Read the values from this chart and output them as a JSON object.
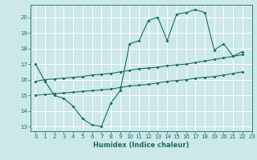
{
  "xlabel": "Humidex (Indice chaleur)",
  "bg_color": "#cce8e8",
  "grid_color": "#ffffff",
  "line_color": "#1a6b6b",
  "xlim": [
    -0.5,
    23
  ],
  "ylim": [
    12.7,
    20.8
  ],
  "xticks": [
    0,
    1,
    2,
    3,
    4,
    5,
    6,
    7,
    8,
    9,
    10,
    11,
    12,
    13,
    14,
    15,
    16,
    17,
    18,
    19,
    20,
    21,
    22,
    23
  ],
  "yticks": [
    13,
    14,
    15,
    16,
    17,
    18,
    19,
    20
  ],
  "line1_x": [
    0,
    1,
    2,
    3,
    4,
    5,
    6,
    7,
    8,
    9,
    10,
    11,
    12,
    13,
    14,
    15,
    16,
    17,
    18,
    19,
    20,
    21,
    22
  ],
  "line1_y": [
    17.0,
    15.9,
    15.0,
    14.8,
    14.3,
    13.5,
    13.1,
    13.0,
    14.5,
    15.3,
    18.3,
    18.5,
    19.8,
    20.0,
    18.5,
    20.2,
    20.3,
    20.5,
    20.3,
    17.9,
    18.3,
    17.5,
    17.8
  ],
  "line2_x": [
    0,
    1,
    2,
    3,
    4,
    5,
    6,
    7,
    8,
    9,
    10,
    11,
    12,
    13,
    14,
    15,
    16,
    17,
    18,
    19,
    20,
    21,
    22
  ],
  "line2_y": [
    15.9,
    16.0,
    16.05,
    16.1,
    16.15,
    16.2,
    16.3,
    16.35,
    16.4,
    16.5,
    16.6,
    16.7,
    16.75,
    16.8,
    16.9,
    16.95,
    17.0,
    17.1,
    17.2,
    17.3,
    17.4,
    17.5,
    17.6
  ],
  "line3_x": [
    0,
    1,
    2,
    3,
    4,
    5,
    6,
    7,
    8,
    9,
    10,
    11,
    12,
    13,
    14,
    15,
    16,
    17,
    18,
    19,
    20,
    21,
    22
  ],
  "line3_y": [
    15.0,
    15.05,
    15.1,
    15.15,
    15.2,
    15.25,
    15.3,
    15.35,
    15.4,
    15.5,
    15.6,
    15.65,
    15.7,
    15.8,
    15.9,
    15.95,
    16.0,
    16.1,
    16.15,
    16.2,
    16.3,
    16.4,
    16.5
  ]
}
